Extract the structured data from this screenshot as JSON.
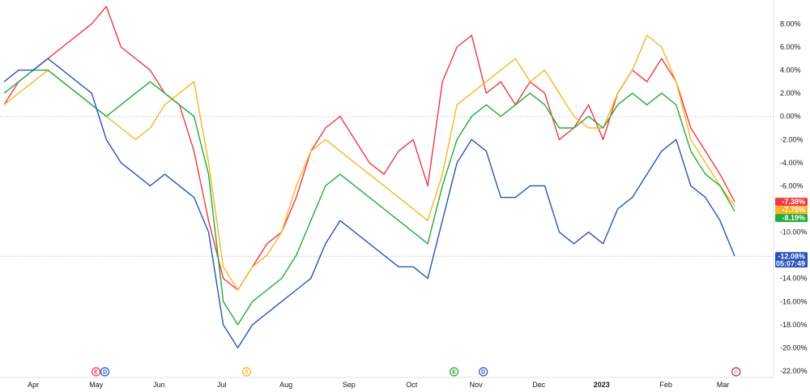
{
  "chart_data": {
    "type": "line",
    "ylim": [
      -22,
      9.5
    ],
    "y_ticks": [
      "8.00%",
      "6.00%",
      "4.00%",
      "2.00%",
      "0.00%",
      "-2.00%",
      "-4.00%",
      "-6.00%",
      "-8.00%",
      "-10.00%",
      "-12.00%",
      "-14.00%",
      "-16.00%",
      "-18.00%",
      "-20.00%",
      "-22.00%"
    ],
    "y_tick_values": [
      8,
      6,
      4,
      2,
      0,
      -2,
      -4,
      -6,
      -8,
      -10,
      -12,
      -14,
      -16,
      -18,
      -20,
      -22
    ],
    "x_range": [
      0,
      51
    ],
    "x_ticks": [
      {
        "label": "Apr",
        "pos": 2
      },
      {
        "label": "May",
        "pos": 6.3
      },
      {
        "label": "Jun",
        "pos": 10.6
      },
      {
        "label": "Jul",
        "pos": 14.9
      },
      {
        "label": "Aug",
        "pos": 19.3
      },
      {
        "label": "Sep",
        "pos": 23.6
      },
      {
        "label": "Oct",
        "pos": 27.9
      },
      {
        "label": "Nov",
        "pos": 32.3
      },
      {
        "label": "Dec",
        "pos": 36.6
      },
      {
        "label": "2023",
        "pos": 40.9,
        "bold": true
      },
      {
        "label": "Feb",
        "pos": 45.3
      },
      {
        "label": "Mar",
        "pos": 49.2
      }
    ],
    "grid": false,
    "zero_line": 0,
    "series": [
      {
        "color": "#f23645",
        "last_label": "-7.38%",
        "values": [
          1,
          3,
          4,
          5,
          6,
          7,
          8,
          9.5,
          6,
          5,
          4,
          2,
          1,
          -3,
          -9,
          -14,
          -15,
          -13,
          -11,
          -10,
          -7,
          -3,
          -1,
          0,
          -2,
          -4,
          -5,
          -3,
          -2,
          -6,
          3,
          6,
          7,
          2,
          3,
          1,
          3,
          2,
          -2,
          -1,
          1,
          -2,
          2,
          4,
          3,
          5,
          3,
          -1,
          -3,
          -5,
          -7.38
        ]
      },
      {
        "color": "#f7b526",
        "last_label": "-7.75%",
        "values": [
          1,
          2,
          3,
          4,
          3,
          2,
          1,
          0,
          -1,
          -2,
          -1,
          1,
          2,
          3,
          -4,
          -13,
          -15,
          -13,
          -12,
          -10,
          -6,
          -3,
          -2,
          -3,
          -4,
          -5,
          -6,
          -7,
          -8,
          -9,
          -5,
          1,
          2,
          3,
          4,
          5,
          3,
          4,
          2,
          0,
          -1,
          -1,
          2,
          4,
          7,
          6,
          3,
          -2,
          -4,
          -6,
          -7.75
        ]
      },
      {
        "color": "#22ab3a",
        "last_label": "-8.19%",
        "values": [
          2,
          3,
          4,
          4,
          3,
          2,
          1,
          0,
          1,
          2,
          3,
          2,
          1,
          0,
          -5,
          -16,
          -18,
          -16,
          -15,
          -14,
          -12,
          -9,
          -6,
          -5,
          -6,
          -7,
          -8,
          -9,
          -10,
          -11,
          -6,
          -2,
          0,
          1,
          0,
          1,
          2,
          1,
          -1,
          -1,
          0,
          -1,
          1,
          2,
          1,
          2,
          1,
          -3,
          -5,
          -6,
          -8.19
        ]
      },
      {
        "color": "#2a52be",
        "last_label": "-12.08%",
        "values": [
          3,
          4,
          4,
          5,
          4,
          3,
          2,
          -2,
          -4,
          -5,
          -6,
          -5,
          -6,
          -7,
          -10,
          -18,
          -20,
          -18,
          -17,
          -16,
          -15,
          -14,
          -11,
          -9,
          -10,
          -11,
          -12,
          -13,
          -13,
          -14,
          -9,
          -4,
          -2,
          -3,
          -7,
          -7,
          -6,
          -6,
          -10,
          -11,
          -10,
          -11,
          -8,
          -7,
          -5,
          -3,
          -2,
          -6,
          -7,
          -9,
          -12.08
        ]
      }
    ],
    "time_badge": "05:07:49",
    "events": [
      {
        "symbol": "E",
        "color": "#f23645",
        "pos": 6.3
      },
      {
        "symbol": "D",
        "color": "#2a52be",
        "pos": 6.9
      },
      {
        "symbol": "$",
        "color": "#f7b526",
        "pos": 16.6
      },
      {
        "symbol": "E",
        "color": "#22ab3a",
        "pos": 30.8
      },
      {
        "symbol": "D",
        "color": "#2a52be",
        "pos": 32.8
      },
      {
        "symbol": "⚡",
        "color": "#9c27b0",
        "pos": 50.1
      }
    ]
  }
}
